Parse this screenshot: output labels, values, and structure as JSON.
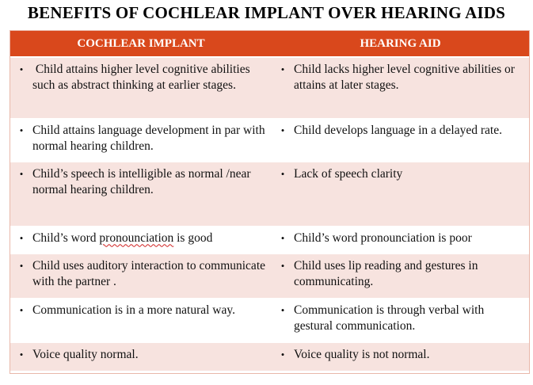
{
  "title": "BENEFITS OF COCHLEAR IMPLANT OVER HEARING AIDS",
  "columns": [
    "COCHLEAR IMPLANT",
    "HEARING  AID"
  ],
  "bullet": "•",
  "rows": [
    {
      "ci": " Child attains higher level cognitive abilities such as abstract thinking at earlier stages.",
      "ha": "Child lacks higher level cognitive abilities or attains at later stages."
    },
    {
      "ci": "Child attains language development in par with normal hearing children.",
      "ha": "Child develops language in a delayed rate."
    },
    {
      "ci": "Child’s speech is intelligible as normal /near normal hearing children.",
      "ha": "Lack of speech clarity"
    },
    {
      "ci_before": "Child’s word ",
      "ci_marked": "pronounciation",
      "ci_after": " is good",
      "ha": "Child’s word pronounciation is poor"
    },
    {
      "ci": "Child uses auditory interaction to communicate with the partner .",
      "ha": "Child uses lip reading and gestures in communicating."
    },
    {
      "ci": "Communication is in a more natural way.",
      "ha": "Communication is through verbal with gestural communication."
    },
    {
      "ci": "Voice quality normal.",
      "ha": "Voice quality is not normal."
    }
  ],
  "colors": {
    "header_bg": "#d9481c",
    "row_tint": "#f7e3df",
    "row_plain": "#ffffff"
  }
}
